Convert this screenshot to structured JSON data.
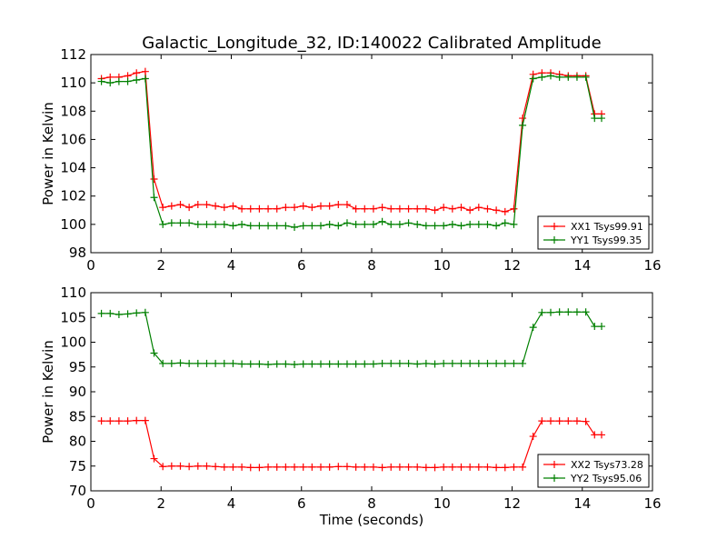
{
  "figure": {
    "title": "Galactic_Longitude_32, ID:140022 Calibrated Amplitude"
  },
  "chart_data": [
    {
      "type": "line",
      "title": "Galactic_Longitude_32, ID:140022 Calibrated Amplitude",
      "xlabel": "",
      "ylabel": "Power in Kelvin",
      "xlim": [
        0,
        16
      ],
      "ylim": [
        98,
        112
      ],
      "xticks": [
        0,
        2,
        4,
        6,
        8,
        10,
        12,
        14,
        16
      ],
      "yticks": [
        98,
        100,
        102,
        104,
        106,
        108,
        110,
        112
      ],
      "grid": false,
      "legend": "lower-right",
      "x": [
        0.3,
        0.55,
        0.8,
        1.05,
        1.3,
        1.55,
        1.8,
        2.05,
        2.3,
        2.55,
        2.8,
        3.05,
        3.3,
        3.55,
        3.8,
        4.05,
        4.3,
        4.55,
        4.8,
        5.05,
        5.3,
        5.55,
        5.8,
        6.05,
        6.3,
        6.55,
        6.8,
        7.05,
        7.3,
        7.55,
        7.8,
        8.05,
        8.3,
        8.55,
        8.8,
        9.05,
        9.3,
        9.55,
        9.8,
        10.05,
        10.3,
        10.55,
        10.8,
        11.05,
        11.3,
        11.55,
        11.8,
        12.05,
        12.3,
        12.6,
        12.85,
        13.1,
        13.35,
        13.6,
        13.85,
        14.1,
        14.35,
        14.55
      ],
      "series": [
        {
          "name": "XX1 Tsys99.91",
          "color": "#ff0000",
          "values": [
            110.3,
            110.4,
            110.4,
            110.5,
            110.7,
            110.8,
            103.2,
            101.2,
            101.3,
            101.4,
            101.2,
            101.4,
            101.4,
            101.3,
            101.2,
            101.3,
            101.1,
            101.1,
            101.1,
            101.1,
            101.1,
            101.2,
            101.2,
            101.3,
            101.2,
            101.3,
            101.3,
            101.4,
            101.4,
            101.1,
            101.1,
            101.1,
            101.2,
            101.1,
            101.1,
            101.1,
            101.1,
            101.1,
            101.0,
            101.2,
            101.1,
            101.2,
            101.0,
            101.2,
            101.1,
            101.0,
            100.9,
            101.1,
            107.5,
            110.6,
            110.7,
            110.7,
            110.6,
            110.5,
            110.5,
            110.5,
            107.8,
            107.8
          ]
        },
        {
          "name": "YY1 Tsys99.35",
          "color": "#008000",
          "values": [
            110.1,
            110.0,
            110.1,
            110.1,
            110.2,
            110.3,
            101.9,
            100.0,
            100.1,
            100.1,
            100.1,
            100.0,
            100.0,
            100.0,
            100.0,
            99.9,
            100.0,
            99.9,
            99.9,
            99.9,
            99.9,
            99.9,
            99.8,
            99.9,
            99.9,
            99.9,
            100.0,
            99.9,
            100.1,
            100.0,
            100.0,
            100.0,
            100.2,
            100.0,
            100.0,
            100.1,
            100.0,
            99.9,
            99.9,
            99.9,
            100.0,
            99.9,
            100.0,
            100.0,
            100.0,
            99.9,
            100.1,
            100.0,
            107.0,
            110.3,
            110.4,
            110.5,
            110.4,
            110.4,
            110.4,
            110.4,
            107.5,
            107.5
          ]
        }
      ]
    },
    {
      "type": "line",
      "title": "",
      "xlabel": "Time (seconds)",
      "ylabel": "Power in Kelvin",
      "xlim": [
        0,
        16
      ],
      "ylim": [
        70,
        110
      ],
      "xticks": [
        0,
        2,
        4,
        6,
        8,
        10,
        12,
        14,
        16
      ],
      "yticks": [
        70,
        75,
        80,
        85,
        90,
        95,
        100,
        105,
        110
      ],
      "grid": false,
      "legend": "lower-right",
      "x": [
        0.3,
        0.55,
        0.8,
        1.05,
        1.3,
        1.55,
        1.8,
        2.05,
        2.3,
        2.55,
        2.8,
        3.05,
        3.3,
        3.55,
        3.8,
        4.05,
        4.3,
        4.55,
        4.8,
        5.05,
        5.3,
        5.55,
        5.8,
        6.05,
        6.3,
        6.55,
        6.8,
        7.05,
        7.3,
        7.55,
        7.8,
        8.05,
        8.3,
        8.55,
        8.8,
        9.05,
        9.3,
        9.55,
        9.8,
        10.05,
        10.3,
        10.55,
        10.8,
        11.05,
        11.3,
        11.55,
        11.8,
        12.05,
        12.3,
        12.6,
        12.85,
        13.1,
        13.35,
        13.6,
        13.85,
        14.1,
        14.35,
        14.55
      ],
      "series": [
        {
          "name": "XX2 Tsys73.28",
          "color": "#ff0000",
          "values": [
            84.1,
            84.1,
            84.1,
            84.1,
            84.2,
            84.2,
            76.5,
            74.9,
            75.0,
            75.0,
            74.9,
            75.0,
            75.0,
            74.9,
            74.8,
            74.8,
            74.8,
            74.7,
            74.7,
            74.8,
            74.8,
            74.8,
            74.8,
            74.8,
            74.8,
            74.8,
            74.8,
            74.9,
            74.9,
            74.8,
            74.8,
            74.8,
            74.7,
            74.8,
            74.8,
            74.8,
            74.8,
            74.7,
            74.7,
            74.8,
            74.8,
            74.8,
            74.8,
            74.8,
            74.8,
            74.7,
            74.7,
            74.8,
            74.8,
            81.0,
            84.1,
            84.1,
            84.1,
            84.1,
            84.1,
            84.0,
            81.3,
            81.3
          ]
        },
        {
          "name": "YY2 Tsys95.06",
          "color": "#008000",
          "values": [
            105.8,
            105.8,
            105.6,
            105.7,
            105.9,
            106.0,
            97.8,
            95.7,
            95.7,
            95.8,
            95.7,
            95.7,
            95.7,
            95.7,
            95.7,
            95.7,
            95.6,
            95.6,
            95.6,
            95.5,
            95.6,
            95.6,
            95.5,
            95.6,
            95.6,
            95.6,
            95.6,
            95.6,
            95.6,
            95.6,
            95.6,
            95.6,
            95.7,
            95.7,
            95.7,
            95.7,
            95.6,
            95.7,
            95.6,
            95.7,
            95.7,
            95.7,
            95.7,
            95.7,
            95.7,
            95.7,
            95.7,
            95.7,
            95.7,
            103.0,
            106.0,
            106.0,
            106.1,
            106.1,
            106.1,
            106.1,
            103.2,
            103.2
          ]
        }
      ]
    }
  ]
}
